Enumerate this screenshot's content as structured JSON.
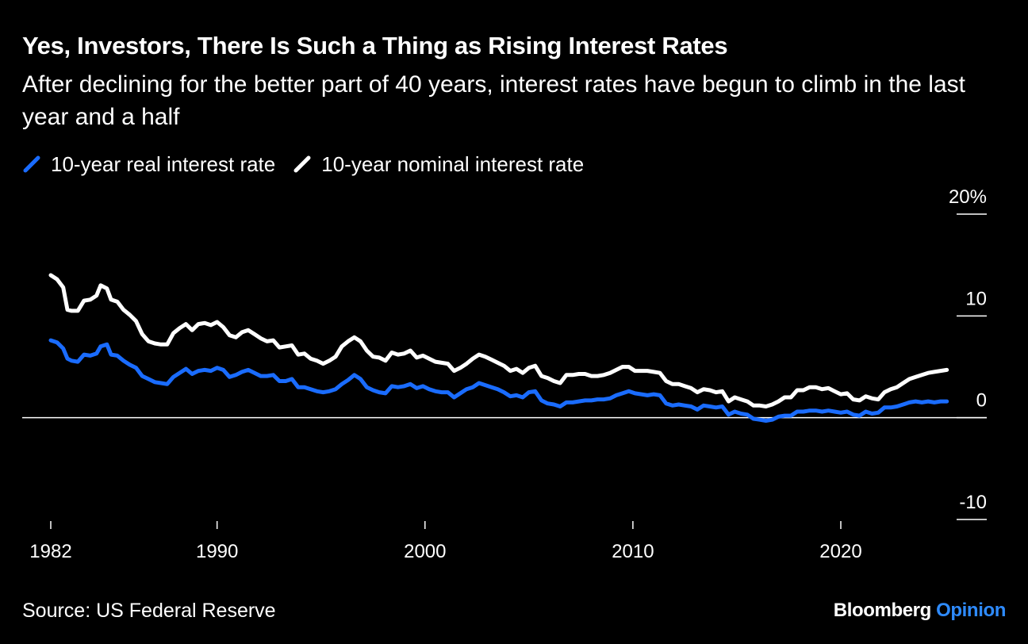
{
  "title": "Yes, Investors, There Is Such a Thing as Rising Interest Rates",
  "subtitle": "After declining for the better part of 40 years, interest rates have begun to climb in the last year and a half",
  "source": "Source: US Federal Reserve",
  "brand": {
    "name": "Bloomberg",
    "suffix": "Opinion",
    "suffix_color": "#2e8bff"
  },
  "colors": {
    "background": "#000000",
    "text": "#ffffff",
    "real": "#1a6cff",
    "nominal": "#ffffff"
  },
  "chart_data": {
    "type": "line",
    "title": "Yes, Investors, There Is Such a Thing as Rising Interest Rates",
    "subtitle": "After declining for the better part of 40 years, interest rates have begun to climb in the last year and a half",
    "xlabel": "",
    "ylabel": "",
    "ylim": [
      -10,
      20
    ],
    "xlim": [
      1981.5,
      2025.2
    ],
    "x_ticks": [
      {
        "value": 1982,
        "label": "1982"
      },
      {
        "value": 1990,
        "label": "1990"
      },
      {
        "value": 2000,
        "label": "2000"
      },
      {
        "value": 2010,
        "label": "2010"
      },
      {
        "value": 2020,
        "label": "2020"
      }
    ],
    "y_ticks": [
      {
        "value": 20,
        "label": "20%"
      },
      {
        "value": 10,
        "label": "10"
      },
      {
        "value": 0,
        "label": "0"
      },
      {
        "value": -10,
        "label": "-10"
      }
    ],
    "y_axis_side": "right",
    "zero_line": true,
    "grid": false,
    "legend_position": "top-left",
    "series": [
      {
        "name": "10-year real interest rate",
        "color": "#1a6cff",
        "points": [
          [
            1982.0,
            7.6
          ],
          [
            1982.3,
            7.4
          ],
          [
            1982.6,
            6.8
          ],
          [
            1982.8,
            5.8
          ],
          [
            1983.0,
            5.6
          ],
          [
            1983.3,
            5.5
          ],
          [
            1983.6,
            6.2
          ],
          [
            1983.9,
            6.1
          ],
          [
            1984.2,
            6.3
          ],
          [
            1984.4,
            7.0
          ],
          [
            1984.7,
            7.2
          ],
          [
            1984.9,
            6.2
          ],
          [
            1985.2,
            6.1
          ],
          [
            1985.5,
            5.6
          ],
          [
            1985.8,
            5.2
          ],
          [
            1986.1,
            4.9
          ],
          [
            1986.4,
            4.1
          ],
          [
            1986.7,
            3.8
          ],
          [
            1987.0,
            3.5
          ],
          [
            1987.3,
            3.4
          ],
          [
            1987.6,
            3.3
          ],
          [
            1987.9,
            4.0
          ],
          [
            1988.2,
            4.4
          ],
          [
            1988.5,
            4.8
          ],
          [
            1988.8,
            4.3
          ],
          [
            1989.1,
            4.6
          ],
          [
            1989.4,
            4.7
          ],
          [
            1989.7,
            4.6
          ],
          [
            1990.0,
            4.9
          ],
          [
            1990.3,
            4.7
          ],
          [
            1990.6,
            4.0
          ],
          [
            1990.9,
            4.2
          ],
          [
            1991.2,
            4.5
          ],
          [
            1991.5,
            4.7
          ],
          [
            1991.8,
            4.4
          ],
          [
            1992.1,
            4.1
          ],
          [
            1992.4,
            4.1
          ],
          [
            1992.7,
            4.2
          ],
          [
            1993.0,
            3.6
          ],
          [
            1993.3,
            3.6
          ],
          [
            1993.6,
            3.8
          ],
          [
            1993.9,
            3.0
          ],
          [
            1994.2,
            3.0
          ],
          [
            1994.5,
            2.8
          ],
          [
            1994.8,
            2.6
          ],
          [
            1995.1,
            2.5
          ],
          [
            1995.4,
            2.6
          ],
          [
            1995.7,
            2.8
          ],
          [
            1996.0,
            3.3
          ],
          [
            1996.3,
            3.7
          ],
          [
            1996.6,
            4.2
          ],
          [
            1996.9,
            3.8
          ],
          [
            1997.2,
            3.0
          ],
          [
            1997.5,
            2.7
          ],
          [
            1997.8,
            2.5
          ],
          [
            1998.1,
            2.4
          ],
          [
            1998.4,
            3.1
          ],
          [
            1998.7,
            3.0
          ],
          [
            1999.0,
            3.1
          ],
          [
            1999.3,
            3.3
          ],
          [
            1999.6,
            2.9
          ],
          [
            1999.9,
            3.1
          ],
          [
            2000.2,
            2.8
          ],
          [
            2000.5,
            2.6
          ],
          [
            2000.8,
            2.5
          ],
          [
            2001.1,
            2.5
          ],
          [
            2001.4,
            2.0
          ],
          [
            2001.7,
            2.4
          ],
          [
            2002.0,
            2.8
          ],
          [
            2002.3,
            3.0
          ],
          [
            2002.6,
            3.4
          ],
          [
            2002.9,
            3.2
          ],
          [
            2003.2,
            3.0
          ],
          [
            2003.5,
            2.8
          ],
          [
            2003.8,
            2.5
          ],
          [
            2004.1,
            2.1
          ],
          [
            2004.4,
            2.2
          ],
          [
            2004.7,
            2.0
          ],
          [
            2005.0,
            2.5
          ],
          [
            2005.3,
            2.6
          ],
          [
            2005.6,
            1.7
          ],
          [
            2005.9,
            1.4
          ],
          [
            2006.2,
            1.3
          ],
          [
            2006.5,
            1.1
          ],
          [
            2006.8,
            1.5
          ],
          [
            2007.1,
            1.5
          ],
          [
            2007.4,
            1.6
          ],
          [
            2007.7,
            1.7
          ],
          [
            2008.0,
            1.7
          ],
          [
            2008.3,
            1.8
          ],
          [
            2008.6,
            1.8
          ],
          [
            2008.9,
            1.9
          ],
          [
            2009.2,
            2.2
          ],
          [
            2009.5,
            2.4
          ],
          [
            2009.8,
            2.6
          ],
          [
            2010.1,
            2.4
          ],
          [
            2010.4,
            2.3
          ],
          [
            2010.7,
            2.2
          ],
          [
            2011.0,
            2.3
          ],
          [
            2011.3,
            2.2
          ],
          [
            2011.6,
            1.4
          ],
          [
            2011.9,
            1.2
          ],
          [
            2012.2,
            1.3
          ],
          [
            2012.5,
            1.2
          ],
          [
            2012.8,
            1.1
          ],
          [
            2013.1,
            0.8
          ],
          [
            2013.4,
            1.2
          ],
          [
            2013.7,
            1.1
          ],
          [
            2014.0,
            1.0
          ],
          [
            2014.3,
            1.1
          ],
          [
            2014.6,
            0.3
          ],
          [
            2014.9,
            0.6
          ],
          [
            2015.2,
            0.4
          ],
          [
            2015.5,
            0.3
          ],
          [
            2015.8,
            -0.1
          ],
          [
            2016.1,
            -0.2
          ],
          [
            2016.4,
            -0.3
          ],
          [
            2016.7,
            -0.2
          ],
          [
            2017.0,
            0.1
          ],
          [
            2017.3,
            0.2
          ],
          [
            2017.6,
            0.2
          ],
          [
            2017.9,
            0.6
          ],
          [
            2018.2,
            0.6
          ],
          [
            2018.5,
            0.7
          ],
          [
            2018.8,
            0.7
          ],
          [
            2019.1,
            0.6
          ],
          [
            2019.4,
            0.7
          ],
          [
            2019.7,
            0.6
          ],
          [
            2020.0,
            0.5
          ],
          [
            2020.3,
            0.6
          ],
          [
            2020.6,
            0.3
          ],
          [
            2020.9,
            0.2
          ],
          [
            2021.2,
            0.6
          ],
          [
            2021.5,
            0.4
          ],
          [
            2021.8,
            0.5
          ],
          [
            2022.1,
            1.0
          ],
          [
            2022.4,
            1.0
          ],
          [
            2022.7,
            1.1
          ],
          [
            2023.0,
            1.3
          ],
          [
            2023.3,
            1.5
          ],
          [
            2023.6,
            1.6
          ],
          [
            2023.9,
            1.5
          ],
          [
            2024.2,
            1.6
          ],
          [
            2024.5,
            1.5
          ],
          [
            2024.8,
            1.6
          ],
          [
            2025.1,
            1.6
          ]
        ]
      },
      {
        "name": "10-year nominal interest rate",
        "color": "#ffffff",
        "points": [
          [
            1982.0,
            14.0
          ],
          [
            1982.3,
            13.6
          ],
          [
            1982.6,
            12.8
          ],
          [
            1982.8,
            10.6
          ],
          [
            1983.0,
            10.5
          ],
          [
            1983.3,
            10.5
          ],
          [
            1983.6,
            11.5
          ],
          [
            1983.9,
            11.6
          ],
          [
            1984.2,
            12.0
          ],
          [
            1984.4,
            13.0
          ],
          [
            1984.7,
            12.7
          ],
          [
            1984.9,
            11.6
          ],
          [
            1985.2,
            11.4
          ],
          [
            1985.5,
            10.6
          ],
          [
            1985.8,
            10.1
          ],
          [
            1986.1,
            9.5
          ],
          [
            1986.4,
            8.2
          ],
          [
            1986.7,
            7.5
          ],
          [
            1987.0,
            7.3
          ],
          [
            1987.3,
            7.2
          ],
          [
            1987.6,
            7.2
          ],
          [
            1987.9,
            8.3
          ],
          [
            1988.2,
            8.8
          ],
          [
            1988.5,
            9.2
          ],
          [
            1988.8,
            8.6
          ],
          [
            1989.1,
            9.2
          ],
          [
            1989.4,
            9.3
          ],
          [
            1989.7,
            9.1
          ],
          [
            1990.0,
            9.4
          ],
          [
            1990.3,
            8.9
          ],
          [
            1990.6,
            8.1
          ],
          [
            1990.9,
            7.9
          ],
          [
            1991.2,
            8.4
          ],
          [
            1991.5,
            8.6
          ],
          [
            1991.8,
            8.2
          ],
          [
            1992.1,
            7.8
          ],
          [
            1992.4,
            7.5
          ],
          [
            1992.7,
            7.6
          ],
          [
            1993.0,
            6.9
          ],
          [
            1993.3,
            7.0
          ],
          [
            1993.6,
            7.1
          ],
          [
            1993.9,
            6.2
          ],
          [
            1994.2,
            6.3
          ],
          [
            1994.5,
            5.8
          ],
          [
            1994.8,
            5.6
          ],
          [
            1995.1,
            5.3
          ],
          [
            1995.4,
            5.6
          ],
          [
            1995.7,
            6.0
          ],
          [
            1996.0,
            7.0
          ],
          [
            1996.3,
            7.5
          ],
          [
            1996.6,
            7.9
          ],
          [
            1996.9,
            7.5
          ],
          [
            1997.2,
            6.6
          ],
          [
            1997.5,
            6.0
          ],
          [
            1997.8,
            5.9
          ],
          [
            1998.1,
            5.6
          ],
          [
            1998.4,
            6.4
          ],
          [
            1998.7,
            6.2
          ],
          [
            1999.0,
            6.3
          ],
          [
            1999.3,
            6.6
          ],
          [
            1999.6,
            5.9
          ],
          [
            1999.9,
            6.1
          ],
          [
            2000.2,
            5.8
          ],
          [
            2000.5,
            5.5
          ],
          [
            2000.8,
            5.4
          ],
          [
            2001.1,
            5.3
          ],
          [
            2001.4,
            4.6
          ],
          [
            2001.7,
            4.9
          ],
          [
            2002.0,
            5.3
          ],
          [
            2002.3,
            5.8
          ],
          [
            2002.6,
            6.2
          ],
          [
            2002.9,
            6.0
          ],
          [
            2003.2,
            5.7
          ],
          [
            2003.5,
            5.4
          ],
          [
            2003.8,
            5.1
          ],
          [
            2004.1,
            4.6
          ],
          [
            2004.4,
            4.8
          ],
          [
            2004.7,
            4.4
          ],
          [
            2005.0,
            4.9
          ],
          [
            2005.3,
            5.1
          ],
          [
            2005.6,
            4.1
          ],
          [
            2005.9,
            3.9
          ],
          [
            2006.2,
            3.6
          ],
          [
            2006.5,
            3.4
          ],
          [
            2006.8,
            4.2
          ],
          [
            2007.1,
            4.2
          ],
          [
            2007.4,
            4.3
          ],
          [
            2007.7,
            4.3
          ],
          [
            2008.0,
            4.1
          ],
          [
            2008.3,
            4.1
          ],
          [
            2008.6,
            4.2
          ],
          [
            2008.9,
            4.4
          ],
          [
            2009.2,
            4.7
          ],
          [
            2009.5,
            5.0
          ],
          [
            2009.8,
            5.0
          ],
          [
            2010.1,
            4.6
          ],
          [
            2010.4,
            4.6
          ],
          [
            2010.7,
            4.6
          ],
          [
            2011.0,
            4.5
          ],
          [
            2011.3,
            4.4
          ],
          [
            2011.6,
            3.6
          ],
          [
            2011.9,
            3.3
          ],
          [
            2012.2,
            3.3
          ],
          [
            2012.5,
            3.1
          ],
          [
            2012.8,
            2.9
          ],
          [
            2013.1,
            2.5
          ],
          [
            2013.4,
            2.8
          ],
          [
            2013.7,
            2.7
          ],
          [
            2014.0,
            2.5
          ],
          [
            2014.3,
            2.6
          ],
          [
            2014.6,
            1.6
          ],
          [
            2014.9,
            2.0
          ],
          [
            2015.2,
            1.8
          ],
          [
            2015.5,
            1.6
          ],
          [
            2015.8,
            1.2
          ],
          [
            2016.1,
            1.2
          ],
          [
            2016.4,
            1.1
          ],
          [
            2016.7,
            1.3
          ],
          [
            2017.0,
            1.6
          ],
          [
            2017.3,
            2.0
          ],
          [
            2017.6,
            2.0
          ],
          [
            2017.9,
            2.7
          ],
          [
            2018.2,
            2.7
          ],
          [
            2018.5,
            3.0
          ],
          [
            2018.8,
            3.0
          ],
          [
            2019.1,
            2.8
          ],
          [
            2019.4,
            2.9
          ],
          [
            2019.7,
            2.6
          ],
          [
            2020.0,
            2.3
          ],
          [
            2020.3,
            2.4
          ],
          [
            2020.6,
            1.8
          ],
          [
            2020.9,
            1.7
          ],
          [
            2021.2,
            2.1
          ],
          [
            2021.5,
            1.9
          ],
          [
            2021.8,
            1.8
          ],
          [
            2022.1,
            2.5
          ],
          [
            2022.4,
            2.8
          ],
          [
            2022.7,
            3.0
          ],
          [
            2023.0,
            3.4
          ],
          [
            2023.3,
            3.8
          ],
          [
            2023.6,
            4.0
          ],
          [
            2023.9,
            4.2
          ],
          [
            2024.2,
            4.4
          ],
          [
            2024.5,
            4.5
          ],
          [
            2024.8,
            4.6
          ],
          [
            2025.1,
            4.7
          ]
        ]
      }
    ]
  }
}
